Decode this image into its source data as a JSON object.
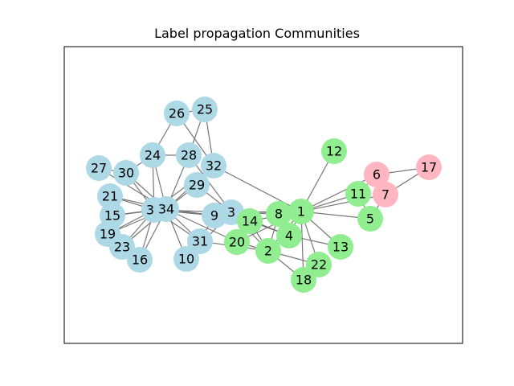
{
  "title": "Label propagation Communities",
  "colors": {
    "community_blue": "#add8e6",
    "community_green": "#90ee90",
    "community_pink": "#ffb6c1",
    "edge": "#777777"
  },
  "nodes": [
    {
      "id": "1",
      "community": "green"
    },
    {
      "id": "2",
      "community": "green"
    },
    {
      "id": "3",
      "community": "blue"
    },
    {
      "id": "4",
      "community": "green"
    },
    {
      "id": "5",
      "community": "green"
    },
    {
      "id": "6",
      "community": "pink"
    },
    {
      "id": "7",
      "community": "pink"
    },
    {
      "id": "8",
      "community": "green"
    },
    {
      "id": "9",
      "community": "blue"
    },
    {
      "id": "10",
      "community": "blue"
    },
    {
      "id": "11",
      "community": "green"
    },
    {
      "id": "12",
      "community": "green"
    },
    {
      "id": "13",
      "community": "green"
    },
    {
      "id": "14",
      "community": "green"
    },
    {
      "id": "15",
      "community": "blue"
    },
    {
      "id": "16",
      "community": "blue"
    },
    {
      "id": "17",
      "community": "pink"
    },
    {
      "id": "18",
      "community": "green"
    },
    {
      "id": "19",
      "community": "blue"
    },
    {
      "id": "20",
      "community": "green"
    },
    {
      "id": "21",
      "community": "blue"
    },
    {
      "id": "22",
      "community": "green"
    },
    {
      "id": "23",
      "community": "blue"
    },
    {
      "id": "24",
      "community": "blue"
    },
    {
      "id": "25",
      "community": "blue"
    },
    {
      "id": "26",
      "community": "blue"
    },
    {
      "id": "27",
      "community": "blue"
    },
    {
      "id": "28",
      "community": "blue"
    },
    {
      "id": "29",
      "community": "blue"
    },
    {
      "id": "30",
      "community": "blue"
    },
    {
      "id": "31",
      "community": "blue"
    },
    {
      "id": "32",
      "community": "blue"
    },
    {
      "id": "33",
      "community": "blue"
    },
    {
      "id": "34",
      "community": "blue"
    }
  ],
  "edges": [
    [
      "1",
      "2"
    ],
    [
      "1",
      "3"
    ],
    [
      "1",
      "4"
    ],
    [
      "1",
      "5"
    ],
    [
      "1",
      "6"
    ],
    [
      "1",
      "7"
    ],
    [
      "1",
      "8"
    ],
    [
      "1",
      "9"
    ],
    [
      "1",
      "11"
    ],
    [
      "1",
      "12"
    ],
    [
      "1",
      "13"
    ],
    [
      "1",
      "14"
    ],
    [
      "1",
      "18"
    ],
    [
      "1",
      "20"
    ],
    [
      "1",
      "22"
    ],
    [
      "1",
      "32"
    ],
    [
      "2",
      "3"
    ],
    [
      "2",
      "4"
    ],
    [
      "2",
      "8"
    ],
    [
      "2",
      "14"
    ],
    [
      "2",
      "18"
    ],
    [
      "2",
      "20"
    ],
    [
      "2",
      "22"
    ],
    [
      "2",
      "31"
    ],
    [
      "3",
      "4"
    ],
    [
      "3",
      "8"
    ],
    [
      "3",
      "9"
    ],
    [
      "3",
      "10"
    ],
    [
      "3",
      "14"
    ],
    [
      "3",
      "28"
    ],
    [
      "3",
      "29"
    ],
    [
      "3",
      "33"
    ],
    [
      "4",
      "8"
    ],
    [
      "4",
      "13"
    ],
    [
      "4",
      "14"
    ],
    [
      "5",
      "7"
    ],
    [
      "5",
      "11"
    ],
    [
      "6",
      "7"
    ],
    [
      "6",
      "11"
    ],
    [
      "6",
      "17"
    ],
    [
      "7",
      "17"
    ],
    [
      "9",
      "31"
    ],
    [
      "9",
      "33"
    ],
    [
      "9",
      "34"
    ],
    [
      "10",
      "34"
    ],
    [
      "14",
      "34"
    ],
    [
      "15",
      "33"
    ],
    [
      "15",
      "34"
    ],
    [
      "16",
      "33"
    ],
    [
      "16",
      "34"
    ],
    [
      "19",
      "33"
    ],
    [
      "19",
      "34"
    ],
    [
      "20",
      "34"
    ],
    [
      "21",
      "33"
    ],
    [
      "21",
      "34"
    ],
    [
      "23",
      "33"
    ],
    [
      "23",
      "34"
    ],
    [
      "24",
      "26"
    ],
    [
      "24",
      "28"
    ],
    [
      "24",
      "30"
    ],
    [
      "24",
      "33"
    ],
    [
      "24",
      "34"
    ],
    [
      "25",
      "26"
    ],
    [
      "25",
      "28"
    ],
    [
      "25",
      "32"
    ],
    [
      "26",
      "32"
    ],
    [
      "27",
      "30"
    ],
    [
      "27",
      "34"
    ],
    [
      "28",
      "34"
    ],
    [
      "29",
      "32"
    ],
    [
      "29",
      "34"
    ],
    [
      "30",
      "33"
    ],
    [
      "30",
      "34"
    ],
    [
      "31",
      "33"
    ],
    [
      "31",
      "34"
    ],
    [
      "32",
      "33"
    ],
    [
      "32",
      "34"
    ],
    [
      "33",
      "34"
    ]
  ]
}
